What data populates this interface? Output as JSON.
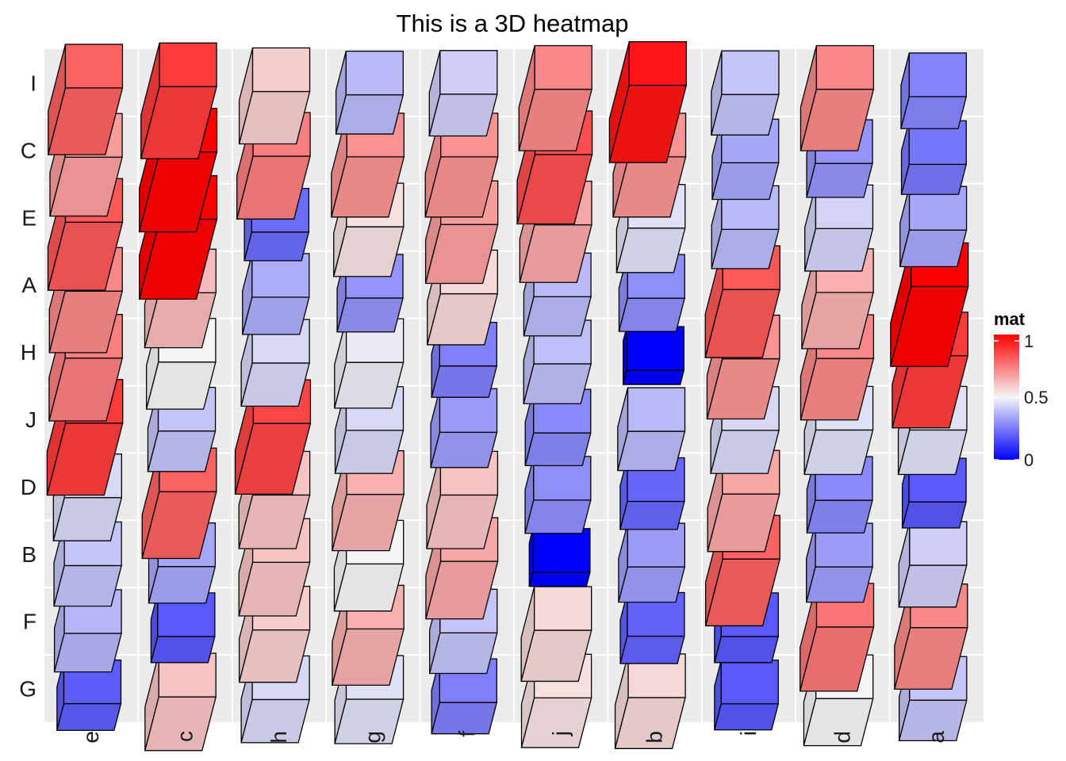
{
  "chart_data": {
    "type": "heatmap",
    "title": "This is a 3D heatmap",
    "x_categories": [
      "e",
      "c",
      "h",
      "g",
      "f",
      "j",
      "b",
      "i",
      "d",
      "a"
    ],
    "y_categories": [
      "I",
      "C",
      "E",
      "A",
      "H",
      "J",
      "D",
      "B",
      "F",
      "G"
    ],
    "values": [
      [
        0.8,
        0.88,
        0.58,
        0.38,
        0.42,
        0.72,
        0.96,
        0.4,
        0.72,
        0.27
      ],
      [
        0.68,
        1.0,
        0.74,
        0.7,
        0.7,
        0.84,
        0.7,
        0.34,
        0.3,
        0.24
      ],
      [
        0.82,
        1.0,
        0.22,
        0.54,
        0.68,
        0.66,
        0.46,
        0.38,
        0.43,
        0.34
      ],
      [
        0.72,
        0.62,
        0.35,
        0.3,
        0.56,
        0.38,
        0.29,
        0.82,
        0.64,
        1.0
      ],
      [
        0.74,
        0.5,
        0.44,
        0.48,
        0.26,
        0.39,
        0.0,
        0.7,
        0.72,
        0.88
      ],
      [
        0.88,
        0.4,
        0.86,
        0.44,
        0.32,
        0.28,
        0.38,
        0.44,
        0.46,
        0.46
      ],
      [
        0.44,
        0.8,
        0.6,
        0.64,
        0.6,
        0.29,
        0.21,
        0.66,
        0.28,
        0.18
      ],
      [
        0.4,
        0.34,
        0.6,
        0.5,
        0.66,
        0.0,
        0.32,
        0.8,
        0.32,
        0.42
      ],
      [
        0.37,
        0.18,
        0.58,
        0.64,
        0.4,
        0.56,
        0.2,
        0.18,
        0.76,
        0.72
      ],
      [
        0.19,
        0.6,
        0.44,
        0.46,
        0.26,
        0.54,
        0.56,
        0.18,
        0.5,
        0.4
      ]
    ],
    "legend": {
      "title": "mat",
      "ticks": [
        "0",
        "0.5",
        "1"
      ],
      "tick_values": [
        0,
        0.5,
        1
      ],
      "range": [
        0,
        1
      ],
      "position": "right",
      "colors": {
        "low": "#0000ff",
        "mid": "#f5f5f5",
        "high": "#ff0000"
      }
    },
    "grid": true,
    "panel_color": "#ebebeb"
  }
}
